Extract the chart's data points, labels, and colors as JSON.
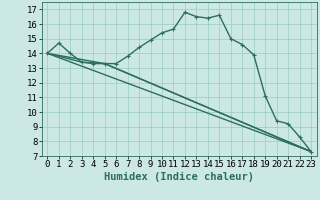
{
  "xlabel": "Humidex (Indice chaleur)",
  "bg_color": "#cce8e4",
  "grid_color": "#99ccc4",
  "line_color": "#2d6e5e",
  "xlim": [
    -0.5,
    23.5
  ],
  "ylim": [
    7,
    17.5
  ],
  "xticks": [
    0,
    1,
    2,
    3,
    4,
    5,
    6,
    7,
    8,
    9,
    10,
    11,
    12,
    13,
    14,
    15,
    16,
    17,
    18,
    19,
    20,
    21,
    22,
    23
  ],
  "yticks": [
    7,
    8,
    9,
    10,
    11,
    12,
    13,
    14,
    15,
    16,
    17
  ],
  "line1_x": [
    0,
    1,
    2,
    3,
    4,
    5,
    6,
    7,
    8,
    9,
    10,
    11,
    12,
    13,
    14,
    15,
    16,
    17,
    18,
    19,
    20,
    21,
    22,
    23
  ],
  "line1_y": [
    14.0,
    14.7,
    14.0,
    13.4,
    13.3,
    13.3,
    13.3,
    13.8,
    14.4,
    14.9,
    15.4,
    15.65,
    16.8,
    16.5,
    16.4,
    16.6,
    15.0,
    14.6,
    13.9,
    11.1,
    9.4,
    9.2,
    8.3,
    7.3
  ],
  "line2_x": [
    0,
    23
  ],
  "line2_y": [
    14.0,
    7.3
  ],
  "line3_x": [
    0,
    5,
    23
  ],
  "line3_y": [
    14.0,
    13.3,
    7.3
  ],
  "line4_x": [
    0,
    3,
    5,
    23
  ],
  "line4_y": [
    14.0,
    13.4,
    13.3,
    7.3
  ],
  "marker_size": 3,
  "line_width": 1.0,
  "tick_fontsize": 6.5,
  "xlabel_fontsize": 7.5
}
